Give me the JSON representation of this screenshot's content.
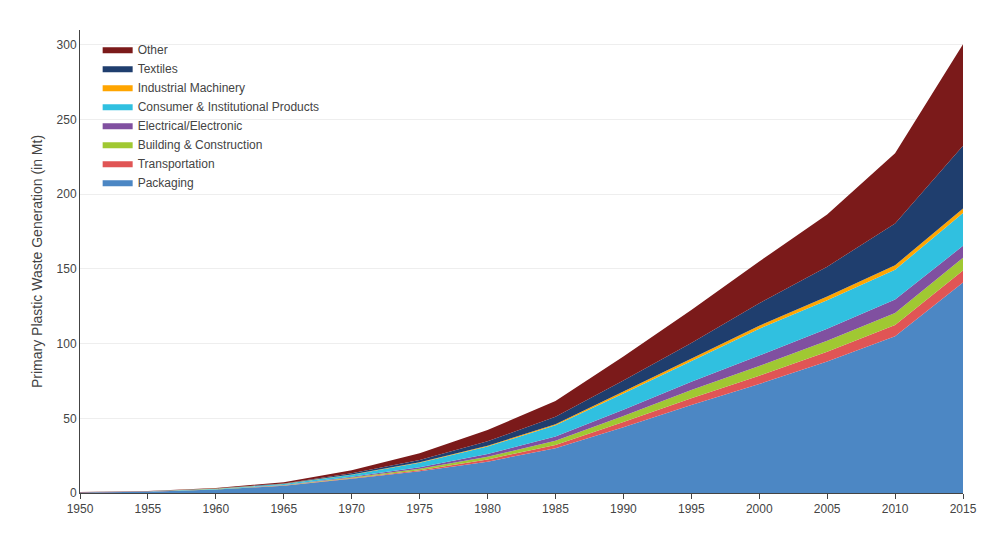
{
  "chart_data": {
    "type": "area",
    "stacked": true,
    "x": [
      1950,
      1955,
      1960,
      1965,
      1970,
      1975,
      1980,
      1985,
      1990,
      1995,
      2000,
      2005,
      2010,
      2015
    ],
    "series": [
      {
        "name": "Packaging",
        "color": "#4C87C4",
        "values": [
          0.4,
          0.9,
          2.3,
          4.8,
          9.5,
          14.5,
          21.0,
          30.0,
          44.0,
          59.0,
          73.0,
          88.0,
          105.0,
          141.0
        ]
      },
      {
        "name": "Transportation",
        "color": "#E05555",
        "values": [
          0.02,
          0.04,
          0.08,
          0.15,
          0.3,
          0.8,
          1.5,
          2.2,
          3.5,
          4.5,
          5.5,
          6.5,
          7.5,
          8.0
        ]
      },
      {
        "name": "Building & Construction",
        "color": "#A0C832",
        "values": [
          0.02,
          0.04,
          0.1,
          0.2,
          0.5,
          1.0,
          1.8,
          2.8,
          4.0,
          5.5,
          6.5,
          7.5,
          8.0,
          8.5
        ]
      },
      {
        "name": "Electrical/Electronic",
        "color": "#8050A0",
        "values": [
          0.02,
          0.04,
          0.1,
          0.2,
          0.5,
          1.0,
          1.8,
          2.8,
          4.2,
          5.5,
          7.0,
          8.0,
          9.0,
          8.0
        ]
      },
      {
        "name": "Consumer & Institutional Products",
        "color": "#30C0E0",
        "values": [
          0.05,
          0.1,
          0.3,
          0.7,
          1.5,
          3.0,
          5.0,
          7.5,
          11.0,
          14.0,
          18.0,
          19.0,
          20.0,
          22.0
        ]
      },
      {
        "name": "Industrial Machinery",
        "color": "#FFA500",
        "values": [
          0.01,
          0.02,
          0.05,
          0.08,
          0.15,
          0.3,
          0.5,
          0.8,
          1.2,
          1.5,
          2.0,
          2.5,
          3.0,
          3.0
        ]
      },
      {
        "name": "Textiles",
        "color": "#1F3E6E",
        "values": [
          0.02,
          0.05,
          0.1,
          0.3,
          0.7,
          1.5,
          3.0,
          5.0,
          7.5,
          10.5,
          15.0,
          20.0,
          28.0,
          42.0
        ]
      },
      {
        "name": "Other",
        "color": "#7B1A1A",
        "values": [
          0.05,
          0.1,
          0.4,
          0.8,
          2.0,
          4.5,
          7.5,
          10.5,
          16.0,
          22.0,
          28.0,
          35.0,
          47.0,
          68.0
        ]
      }
    ],
    "ylabel": "Primary Plastic Waste Generation (in Mt)",
    "xlim": [
      1950,
      2015
    ],
    "xticks": [
      1950,
      1955,
      1960,
      1965,
      1970,
      1975,
      1980,
      1985,
      1990,
      1995,
      2000,
      2005,
      2010,
      2015
    ],
    "ylim": [
      0,
      310
    ],
    "yticks": [
      0,
      50,
      100,
      150,
      200,
      250,
      300
    ],
    "grid": true,
    "legend": "upper left"
  }
}
